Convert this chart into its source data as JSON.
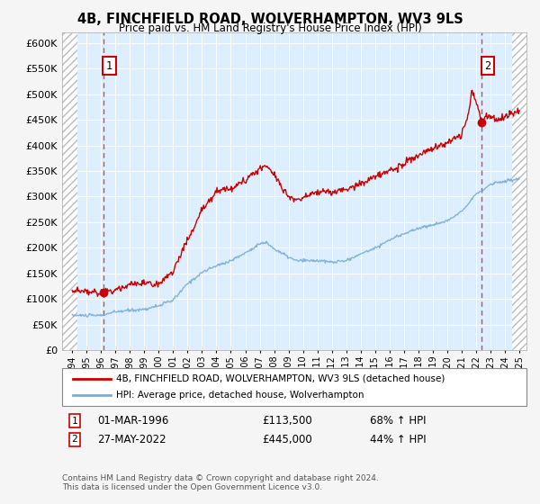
{
  "title": "4B, FINCHFIELD ROAD, WOLVERHAMPTON, WV3 9LS",
  "subtitle": "Price paid vs. HM Land Registry's House Price Index (HPI)",
  "legend_line1": "4B, FINCHFIELD ROAD, WOLVERHAMPTON, WV3 9LS (detached house)",
  "legend_line2": "HPI: Average price, detached house, Wolverhampton",
  "annotation1": {
    "label": "1",
    "date": "01-MAR-1996",
    "price": "£113,500",
    "hpi": "68% ↑ HPI"
  },
  "annotation2": {
    "label": "2",
    "date": "27-MAY-2022",
    "price": "£445,000",
    "hpi": "44% ↑ HPI"
  },
  "footer": "Contains HM Land Registry data © Crown copyright and database right 2024.\nThis data is licensed under the Open Government Licence v3.0.",
  "price_line_color": "#cc0000",
  "hpi_line_color": "#7aadd4",
  "background_color": "#ddeeff",
  "grid_color": "#c8d8e8",
  "annotation_box_color": "#cc0000",
  "ylim": [
    0,
    620000
  ],
  "yticks": [
    0,
    50000,
    100000,
    150000,
    200000,
    250000,
    300000,
    350000,
    400000,
    450000,
    500000,
    550000,
    600000
  ],
  "xstart_year": 1994,
  "xend_year": 2025,
  "sale1_year": 1996.17,
  "sale1_price": 113500,
  "sale2_year": 2022.4,
  "sale2_price": 445000
}
